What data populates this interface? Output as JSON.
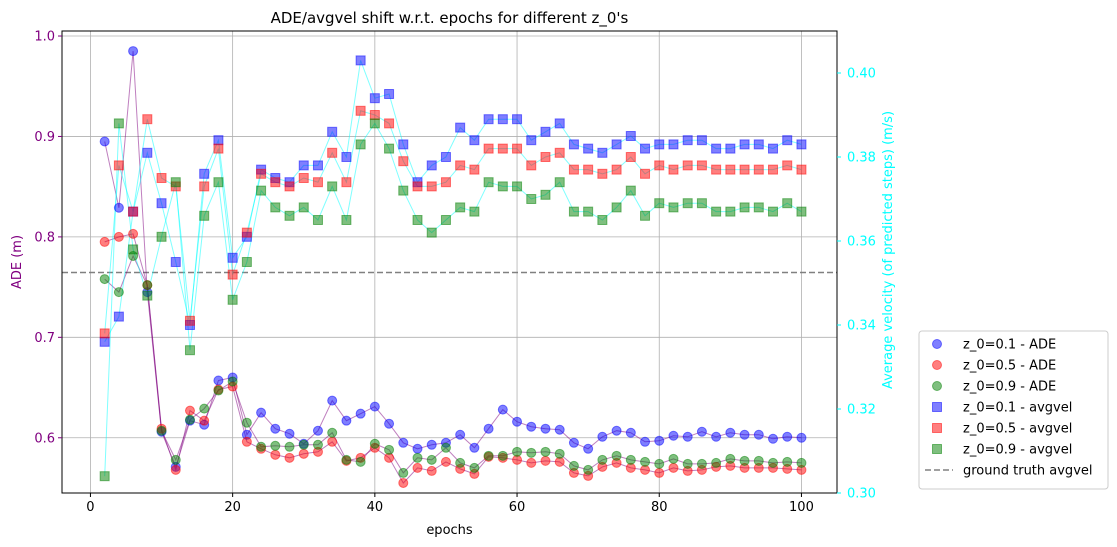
{
  "chart_data": {
    "type": "scatter",
    "title": "ADE/avgvel shift w.r.t. epochs for different z_0's",
    "xlabel": "epochs",
    "ylabel_left": "ADE (m)",
    "ylabel_right": "Average velocity (of predicted steps) (m/s)",
    "xlim": [
      -4,
      105
    ],
    "ylim_left": [
      0.545,
      1.005
    ],
    "ylim_right": [
      0.3,
      0.41
    ],
    "xticks": [
      0,
      20,
      40,
      60,
      80,
      100
    ],
    "xtick_labels": [
      "0",
      "20",
      "40",
      "60",
      "80",
      "100"
    ],
    "yticks_left": [
      0.6,
      0.7,
      0.8,
      0.9,
      1.0
    ],
    "ytick_labels_left": [
      "0.6",
      "0.7",
      "0.8",
      "0.9",
      "1.0"
    ],
    "yticks_right": [
      0.3,
      0.32,
      0.34,
      0.36,
      0.38,
      0.4
    ],
    "ytick_labels_right": [
      "0.30",
      "0.32",
      "0.34",
      "0.36",
      "0.38",
      "0.40"
    ],
    "grid": true,
    "legend_position": "outside-right-bottom",
    "colors": {
      "left_axis": "#800080",
      "right_axis": "#00ffff",
      "ade_line": "#800080",
      "avgvel_line": "#00ffff",
      "ground_truth": "#808080"
    },
    "x": [
      2,
      4,
      6,
      8,
      10,
      12,
      14,
      16,
      18,
      20,
      22,
      24,
      26,
      28,
      30,
      32,
      34,
      36,
      38,
      40,
      42,
      44,
      46,
      48,
      50,
      52,
      54,
      56,
      58,
      60,
      62,
      64,
      66,
      68,
      70,
      72,
      74,
      76,
      78,
      80,
      82,
      84,
      86,
      88,
      90,
      92,
      94,
      96,
      98,
      100
    ],
    "series": [
      {
        "name": "z_0=0.1 - ADE",
        "axis": "left",
        "marker": "circle",
        "color": "#0000ff",
        "values": [
          0.895,
          0.829,
          0.985,
          0.745,
          0.606,
          0.571,
          0.617,
          0.613,
          0.657,
          0.66,
          0.603,
          0.625,
          0.609,
          0.604,
          0.594,
          0.607,
          0.637,
          0.617,
          0.624,
          0.631,
          0.614,
          0.595,
          0.589,
          0.593,
          0.595,
          0.603,
          0.59,
          0.609,
          0.628,
          0.616,
          0.611,
          0.609,
          0.608,
          0.595,
          0.589,
          0.601,
          0.607,
          0.605,
          0.596,
          0.597,
          0.602,
          0.601,
          0.606,
          0.601,
          0.605,
          0.603,
          0.603,
          0.599,
          0.601,
          0.6
        ]
      },
      {
        "name": "z_0=0.5 - ADE",
        "axis": "left",
        "marker": "circle",
        "color": "#ff0000",
        "values": [
          0.795,
          0.8,
          0.803,
          0.752,
          0.609,
          0.568,
          0.627,
          0.617,
          0.648,
          0.651,
          0.596,
          0.589,
          0.583,
          0.58,
          0.584,
          0.586,
          0.596,
          0.577,
          0.58,
          0.59,
          0.58,
          0.555,
          0.57,
          0.567,
          0.576,
          0.569,
          0.564,
          0.581,
          0.58,
          0.578,
          0.575,
          0.577,
          0.576,
          0.565,
          0.562,
          0.571,
          0.575,
          0.57,
          0.568,
          0.565,
          0.57,
          0.567,
          0.568,
          0.571,
          0.572,
          0.57,
          0.57,
          0.57,
          0.569,
          0.568
        ]
      },
      {
        "name": "z_0=0.9 - ADE",
        "axis": "left",
        "marker": "circle",
        "color": "#008000",
        "values": [
          0.758,
          0.745,
          0.781,
          0.752,
          0.607,
          0.578,
          0.618,
          0.629,
          0.647,
          0.656,
          0.615,
          0.591,
          0.592,
          0.591,
          0.593,
          0.593,
          0.605,
          0.578,
          0.576,
          0.594,
          0.588,
          0.565,
          0.58,
          0.578,
          0.59,
          0.575,
          0.57,
          0.582,
          0.582,
          0.586,
          0.585,
          0.586,
          0.584,
          0.572,
          0.568,
          0.578,
          0.582,
          0.578,
          0.576,
          0.574,
          0.579,
          0.574,
          0.574,
          0.575,
          0.579,
          0.577,
          0.577,
          0.575,
          0.576,
          0.575
        ]
      },
      {
        "name": "z_0=0.1 - avgvel",
        "axis": "right",
        "marker": "square",
        "color": "#0000ff",
        "values": [
          0.336,
          0.342,
          0.367,
          0.381,
          0.369,
          0.355,
          0.34,
          0.376,
          0.384,
          0.356,
          0.361,
          0.377,
          0.375,
          0.374,
          0.378,
          0.378,
          0.386,
          0.38,
          0.403,
          0.394,
          0.395,
          0.383,
          0.374,
          0.378,
          0.38,
          0.387,
          0.384,
          0.389,
          0.389,
          0.389,
          0.384,
          0.386,
          0.388,
          0.383,
          0.382,
          0.381,
          0.383,
          0.385,
          0.382,
          0.383,
          0.383,
          0.384,
          0.384,
          0.382,
          0.382,
          0.383,
          0.383,
          0.382,
          0.384,
          0.383
        ]
      },
      {
        "name": "z_0=0.5 - avgvel",
        "axis": "right",
        "marker": "square",
        "color": "#ff0000",
        "values": [
          0.338,
          0.378,
          0.367,
          0.389,
          0.375,
          0.373,
          0.341,
          0.373,
          0.382,
          0.352,
          0.362,
          0.376,
          0.374,
          0.373,
          0.375,
          0.374,
          0.381,
          0.374,
          0.391,
          0.39,
          0.388,
          0.379,
          0.373,
          0.373,
          0.374,
          0.378,
          0.377,
          0.382,
          0.382,
          0.382,
          0.378,
          0.38,
          0.381,
          0.377,
          0.377,
          0.376,
          0.377,
          0.38,
          0.376,
          0.378,
          0.377,
          0.378,
          0.378,
          0.377,
          0.377,
          0.377,
          0.377,
          0.377,
          0.378,
          0.377
        ]
      },
      {
        "name": "z_0=0.9 - avgvel",
        "axis": "right",
        "marker": "square",
        "color": "#008000",
        "values": [
          0.304,
          0.388,
          0.358,
          0.347,
          0.361,
          0.374,
          0.334,
          0.366,
          0.374,
          0.346,
          0.355,
          0.372,
          0.368,
          0.366,
          0.368,
          0.365,
          0.373,
          0.365,
          0.383,
          0.388,
          0.382,
          0.372,
          0.365,
          0.362,
          0.365,
          0.368,
          0.367,
          0.374,
          0.373,
          0.373,
          0.37,
          0.371,
          0.374,
          0.367,
          0.367,
          0.365,
          0.368,
          0.372,
          0.366,
          0.369,
          0.368,
          0.369,
          0.369,
          0.367,
          0.367,
          0.368,
          0.368,
          0.367,
          0.369,
          0.367
        ]
      }
    ],
    "ground_truth": {
      "name": "ground truth avgvel",
      "axis": "right",
      "value": 0.3525
    },
    "legend": [
      {
        "label": "z_0=0.1 - ADE",
        "marker": "circle",
        "color": "#0000ff"
      },
      {
        "label": "z_0=0.5 - ADE",
        "marker": "circle",
        "color": "#ff0000"
      },
      {
        "label": "z_0=0.9 - ADE",
        "marker": "circle",
        "color": "#008000"
      },
      {
        "label": "z_0=0.1 - avgvel",
        "marker": "square",
        "color": "#0000ff"
      },
      {
        "label": "z_0=0.5 - avgvel",
        "marker": "square",
        "color": "#ff0000"
      },
      {
        "label": "z_0=0.9 - avgvel",
        "marker": "square",
        "color": "#008000"
      },
      {
        "label": "ground truth avgvel",
        "marker": "dashed-line",
        "color": "#808080"
      }
    ]
  }
}
